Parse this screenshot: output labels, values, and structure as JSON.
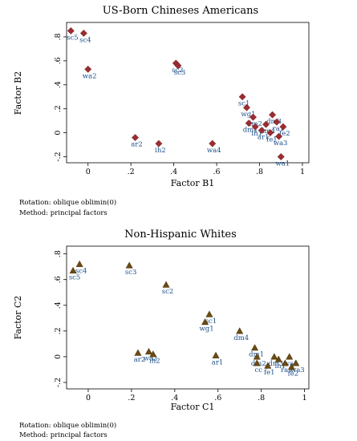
{
  "chart_data": [
    {
      "type": "scatter",
      "title": "US-Born Chineses Americans",
      "xlabel": "Factor B1",
      "ylabel": "Factor B2",
      "xlim": [
        -0.1,
        1.03
      ],
      "ylim": [
        -0.25,
        0.92
      ],
      "xticks": [
        "0",
        ".2",
        ".4",
        ".6",
        ".8",
        "1"
      ],
      "yticks": [
        "-.2",
        "0",
        ".2",
        ".4",
        ".6",
        ".8"
      ],
      "marker": "diamond",
      "color": "#9b2c31",
      "label_color": "#1a4f8a",
      "notes": [
        "Rotation: oblique oblimin(0)",
        "Method: principal factors"
      ],
      "points": [
        {
          "label": "sc5",
          "x": -0.08,
          "y": 0.85
        },
        {
          "label": "sc4",
          "x": -0.02,
          "y": 0.83
        },
        {
          "label": "wa2",
          "x": 0.0,
          "y": 0.53
        },
        {
          "label": "sc2",
          "x": 0.41,
          "y": 0.58
        },
        {
          "label": "sc3",
          "x": 0.42,
          "y": 0.56
        },
        {
          "label": "ar2",
          "x": 0.22,
          "y": -0.04
        },
        {
          "label": "ih2",
          "x": 0.33,
          "y": -0.09
        },
        {
          "label": "wa4",
          "x": 0.58,
          "y": -0.09
        },
        {
          "label": "wa1",
          "x": 0.9,
          "y": -0.2
        },
        {
          "label": "sc1",
          "x": 0.72,
          "y": 0.3
        },
        {
          "label": "wg1",
          "x": 0.74,
          "y": 0.21
        },
        {
          "label": "dm2",
          "x": 0.77,
          "y": 0.13
        },
        {
          "label": "dm1",
          "x": 0.75,
          "y": 0.08
        },
        {
          "label": "ih1",
          "x": 0.78,
          "y": 0.05
        },
        {
          "label": "ar1",
          "x": 0.81,
          "y": 0.02
        },
        {
          "label": "fe1",
          "x": 0.85,
          "y": 0.0
        },
        {
          "label": "dm3",
          "x": 0.86,
          "y": 0.15
        },
        {
          "label": "ra1",
          "x": 0.88,
          "y": 0.09
        },
        {
          "label": "fe2",
          "x": 0.91,
          "y": 0.05
        },
        {
          "label": "wa3",
          "x": 0.89,
          "y": -0.03
        },
        {
          "label": "dm4",
          "x": 0.83,
          "y": 0.07
        }
      ]
    },
    {
      "type": "scatter",
      "title": "Non-Hispanic Whites",
      "xlabel": "Factor C1",
      "ylabel": "Factor C2",
      "xlim": [
        -0.1,
        1.02
      ],
      "ylim": [
        -0.25,
        0.86
      ],
      "xticks": [
        "0",
        ".2",
        ".4",
        ".6",
        ".8",
        "1"
      ],
      "yticks": [
        "-.2",
        "0",
        ".2",
        ".4",
        ".6",
        ".8"
      ],
      "marker": "triangle",
      "color": "#6b4a12",
      "label_color": "#1a4f8a",
      "notes": [
        "Rotation: oblique oblimin(0)",
        "Method: principal factors"
      ],
      "points": [
        {
          "label": "sc5",
          "x": -0.07,
          "y": 0.67
        },
        {
          "label": "sc4",
          "x": -0.04,
          "y": 0.72
        },
        {
          "label": "sc3",
          "x": 0.19,
          "y": 0.71
        },
        {
          "label": "sc2",
          "x": 0.36,
          "y": 0.56
        },
        {
          "label": "sc1",
          "x": 0.56,
          "y": 0.33
        },
        {
          "label": "wg1",
          "x": 0.54,
          "y": 0.27
        },
        {
          "label": "dm4",
          "x": 0.7,
          "y": 0.2
        },
        {
          "label": "ar2",
          "x": 0.23,
          "y": 0.03
        },
        {
          "label": "wa2",
          "x": 0.28,
          "y": 0.04
        },
        {
          "label": "ih2",
          "x": 0.3,
          "y": 0.02
        },
        {
          "label": "ar1",
          "x": 0.59,
          "y": 0.01
        },
        {
          "label": "dm1",
          "x": 0.77,
          "y": 0.07
        },
        {
          "label": "dm2",
          "x": 0.78,
          "y": 0.0
        },
        {
          "label": "wa1",
          "x": 0.93,
          "y": 0.0
        },
        {
          "label": "cc",
          "x": 0.78,
          "y": -0.05
        },
        {
          "label": "fe1",
          "x": 0.83,
          "y": -0.07
        },
        {
          "label": "ih1",
          "x": 0.88,
          "y": -0.02
        },
        {
          "label": "ra1",
          "x": 0.91,
          "y": -0.05
        },
        {
          "label": "fe2",
          "x": 0.94,
          "y": -0.08
        },
        {
          "label": "wa3",
          "x": 0.96,
          "y": -0.05
        },
        {
          "label": "dm3",
          "x": 0.86,
          "y": 0.0
        }
      ]
    }
  ]
}
